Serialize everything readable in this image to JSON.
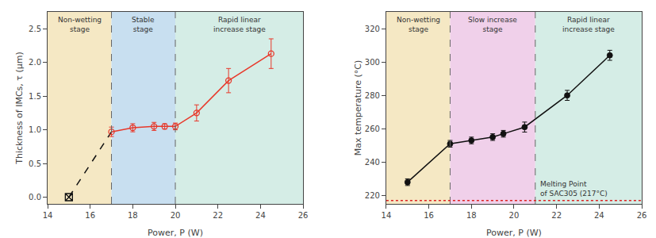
{
  "chart_data": [
    {
      "type": "line",
      "xlabel": "Power, P (W)",
      "ylabel": "Thickness of IMCs, τ (μm)",
      "xlim": [
        14,
        26
      ],
      "ylim": [
        -0.1,
        2.75
      ],
      "xticks": [
        14,
        16,
        18,
        20,
        22,
        24,
        26
      ],
      "yticks": [
        {
          "value": 0.0,
          "label": "0.0"
        },
        0.5,
        {
          "value": 1.0,
          "label": "1.0"
        },
        1.5,
        {
          "value": 2.0,
          "label": "2.0"
        },
        2.5
      ],
      "grid": false,
      "regions": [
        {
          "xmin": 14,
          "xmax": 17,
          "color": "#f5e8c4",
          "label": "Non-wetting\nstage"
        },
        {
          "xmin": 17,
          "xmax": 20,
          "color": "#c8dff0",
          "label": "Stable\nstage"
        },
        {
          "xmin": 20,
          "xmax": 26,
          "color": "#d5ede6",
          "label": "Rapid linear\nincrease stage"
        }
      ],
      "vlines": [
        17,
        20
      ],
      "series": [
        {
          "x": [
            15,
            17
          ],
          "values": [
            0.0,
            0.97
          ],
          "color": "#111111",
          "line_style": "dashed"
        },
        {
          "x": [
            15
          ],
          "values": [
            0.0
          ],
          "color": "#111111",
          "marker": "square-x"
        },
        {
          "x": [
            17,
            18,
            19,
            19.5,
            20,
            21,
            22.5,
            24.5
          ],
          "values": [
            0.97,
            1.03,
            1.05,
            1.05,
            1.05,
            1.25,
            1.73,
            2.13
          ],
          "errors": [
            0.07,
            0.06,
            0.06,
            0.04,
            0.05,
            0.12,
            0.18,
            0.22
          ],
          "color": "#e8382a",
          "marker": "circle-open",
          "line_style": "solid"
        }
      ]
    },
    {
      "type": "line",
      "xlabel": "Power, P (W)",
      "ylabel": "Max temperature (°C)",
      "xlim": [
        14,
        26
      ],
      "ylim": [
        215,
        330
      ],
      "xticks": [
        14,
        16,
        18,
        20,
        22,
        24,
        26
      ],
      "yticks": [
        220,
        240,
        260,
        280,
        300,
        320
      ],
      "grid": false,
      "regions": [
        {
          "xmin": 14,
          "xmax": 17,
          "color": "#f5e8c4",
          "label": "Non-wetting\nstage"
        },
        {
          "xmin": 17,
          "xmax": 21,
          "color": "#f0d0ea",
          "label": "Slow increase\nstage"
        },
        {
          "xmin": 21,
          "xmax": 26,
          "color": "#d5ede6",
          "label": "Rapid linear\nincrease stage"
        }
      ],
      "vlines": [
        17,
        21
      ],
      "hlines": [
        {
          "y": 217,
          "label": "Melting Point\nof SAC305 (217°C)",
          "color": "#dd2222",
          "line_style": "dotted"
        }
      ],
      "series": [
        {
          "x": [
            15,
            17,
            18,
            19,
            19.5,
            20.5,
            22.5,
            24.5
          ],
          "values": [
            228,
            251,
            253,
            255,
            257,
            261,
            280,
            304
          ],
          "errors": [
            2,
            2,
            2,
            2,
            2,
            3,
            3,
            3
          ],
          "color": "#111111",
          "marker": "circle",
          "line_style": "solid"
        }
      ]
    }
  ]
}
